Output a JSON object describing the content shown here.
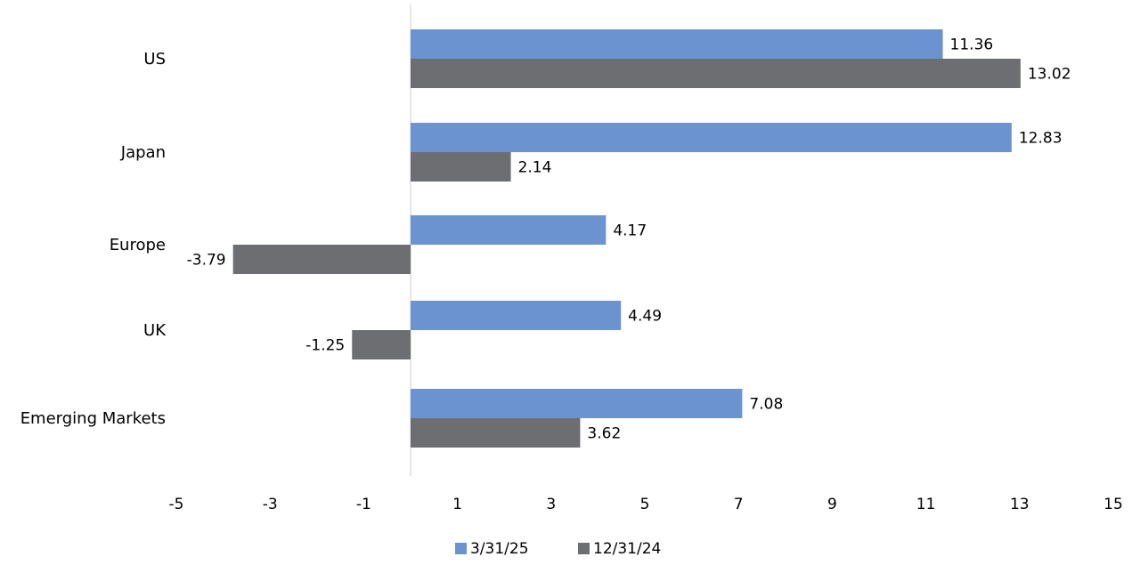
{
  "chart_data": {
    "type": "bar",
    "orientation": "horizontal",
    "categories": [
      "US",
      "Japan",
      "Europe",
      "UK",
      "Emerging Markets"
    ],
    "series": [
      {
        "name": "3/31/25",
        "values": [
          11.36,
          12.83,
          4.17,
          4.49,
          7.08
        ],
        "color": "#6a93cf"
      },
      {
        "name": "12/31/24",
        "values": [
          13.02,
          2.14,
          -3.79,
          -1.25,
          3.62
        ],
        "color": "#6d6e72"
      }
    ],
    "x_ticks": [
      "-5",
      "-3",
      "-1",
      "1",
      "3",
      "5",
      "7",
      "9",
      "11",
      "13",
      "15"
    ],
    "xlim": [
      -5,
      15
    ],
    "grid": false,
    "legend_position": "bottom",
    "title": "",
    "xlabel": "",
    "ylabel": ""
  }
}
